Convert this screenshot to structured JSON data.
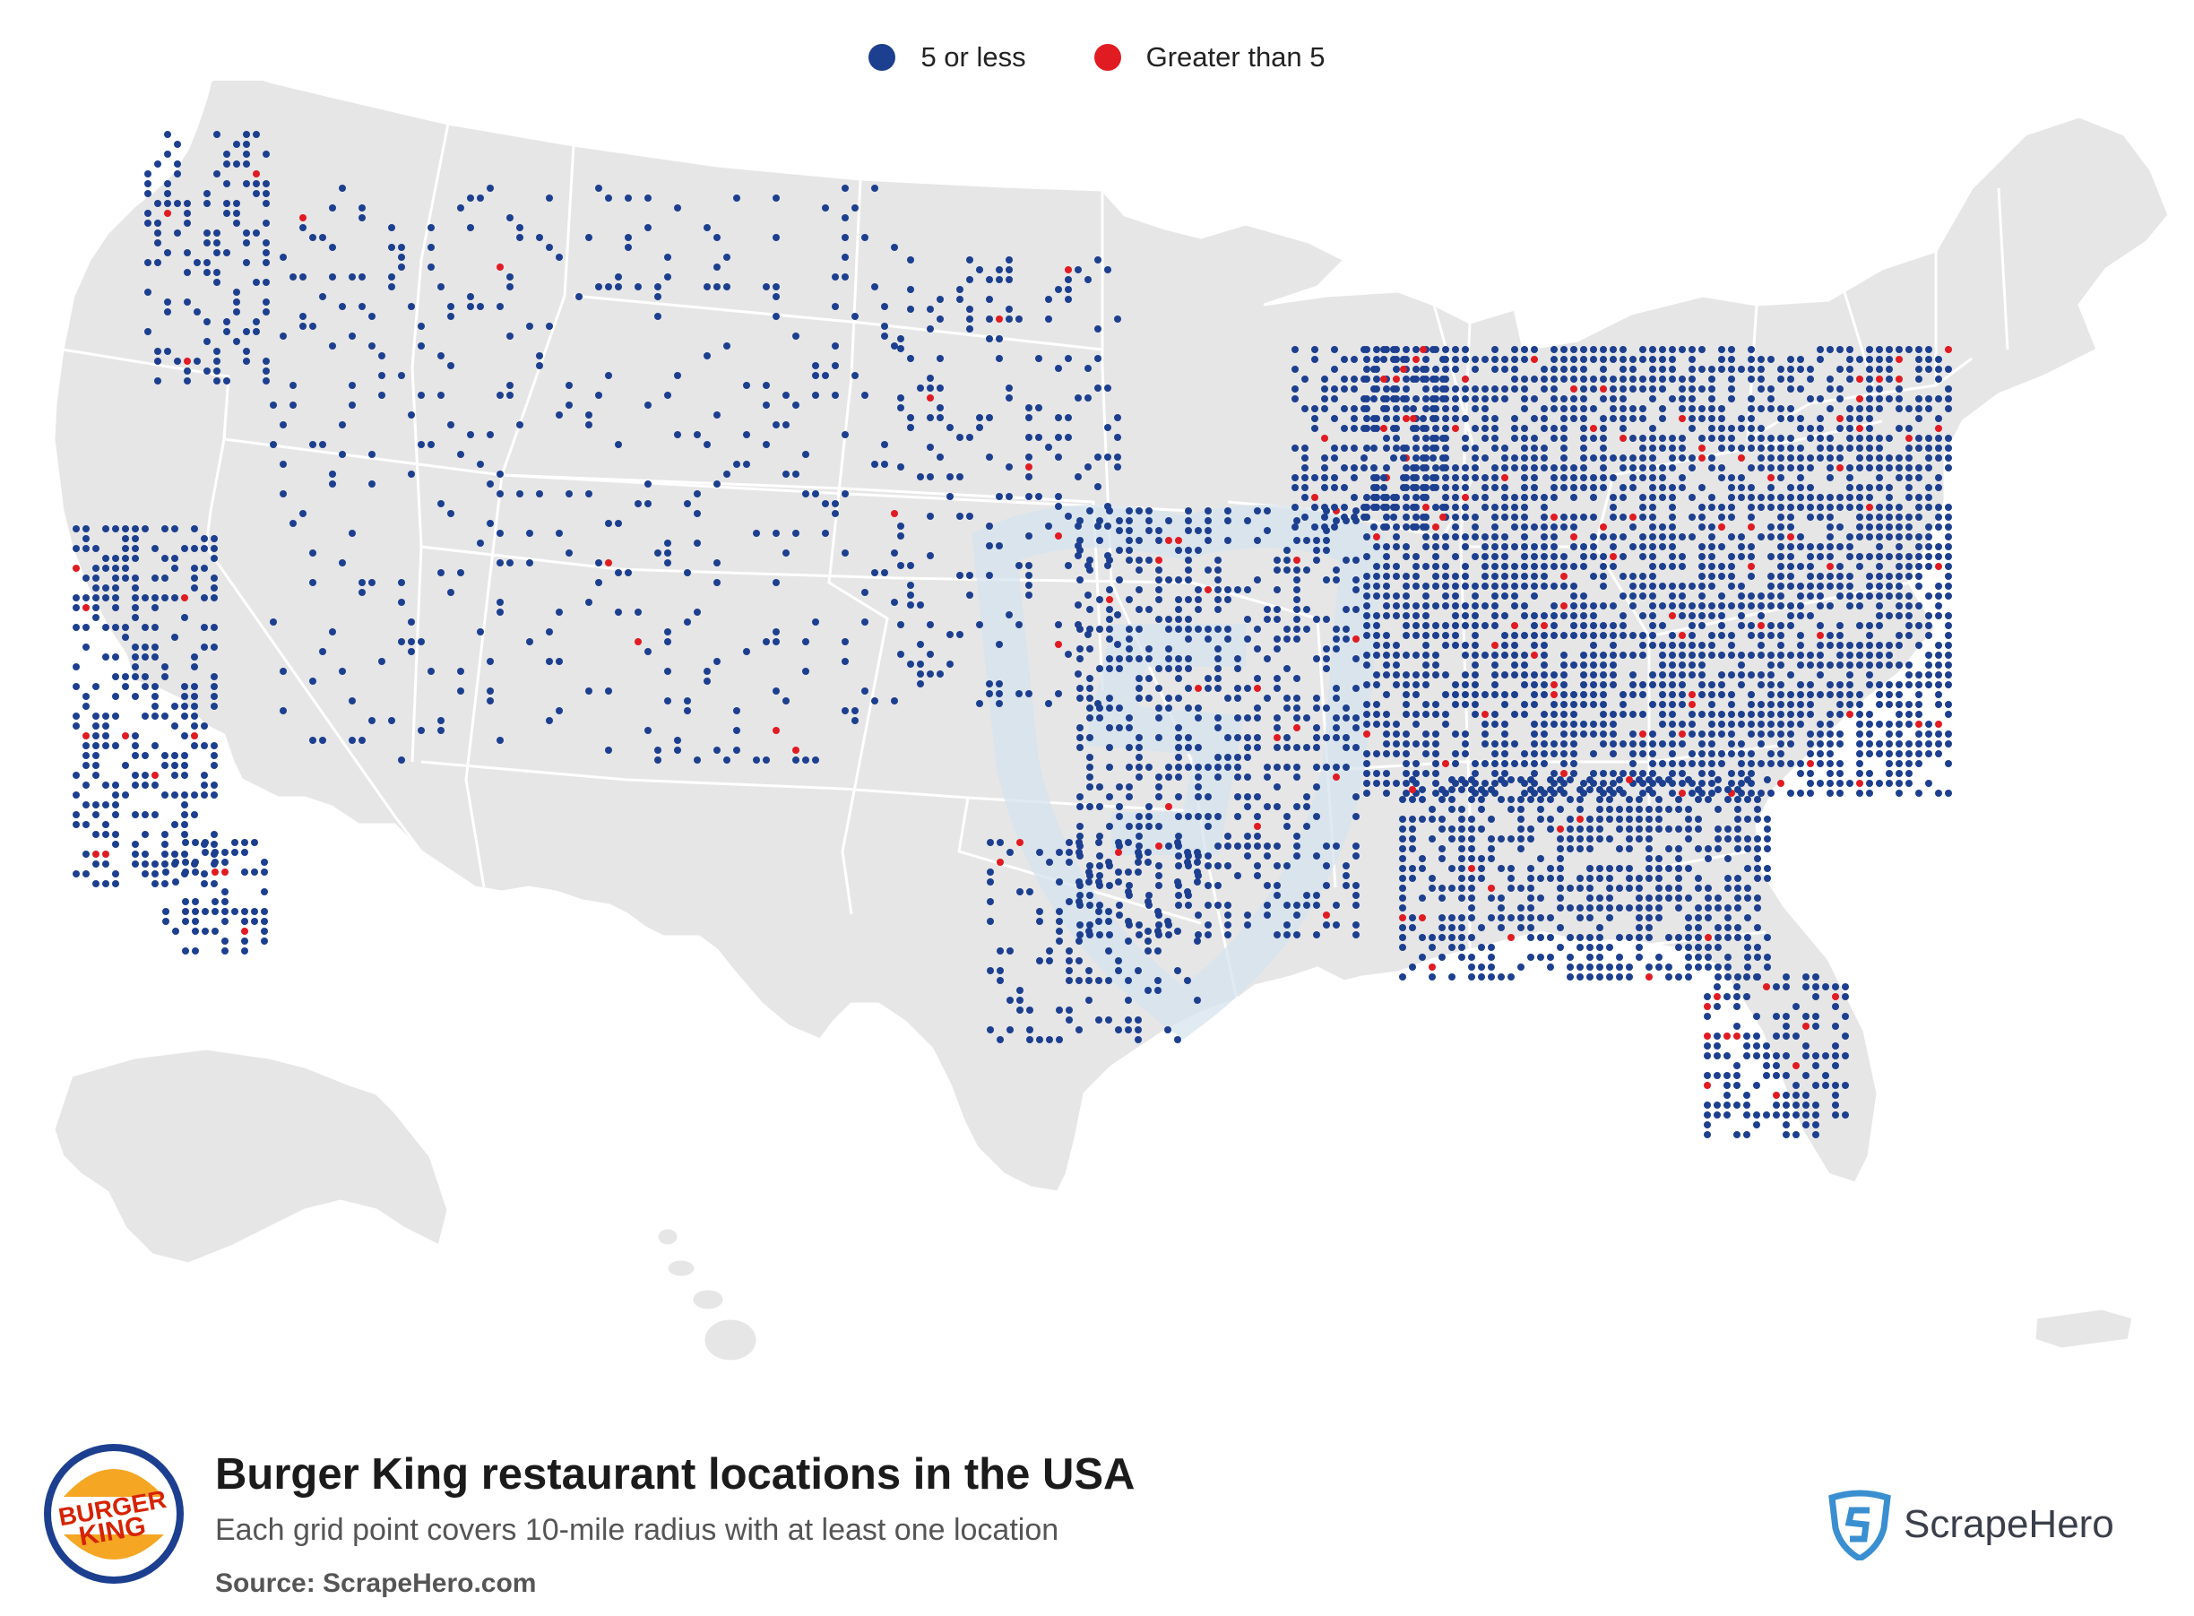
{
  "legend": {
    "items": [
      {
        "label": "5 or less",
        "color": "#1c3f8f"
      },
      {
        "label": "Greater than 5",
        "color": "#e11b22"
      }
    ]
  },
  "map": {
    "land_color": "#e6e6e6",
    "border_color": "#ffffff",
    "watermark_color": "#d7e4ee"
  },
  "footer": {
    "title": "Burger King restaurant locations in the USA",
    "subtitle": "Each grid point covers 10-mile radius with at least one location",
    "source": "Source: ScrapeHero.com",
    "logo_text": [
      "BURGER",
      "KING"
    ],
    "logo_colors": {
      "bun": "#f5a623",
      "text": "#d62300",
      "ring": "#1c3f8f"
    },
    "brand_name": "ScrapeHero",
    "brand_color": "#3a8fd0"
  }
}
